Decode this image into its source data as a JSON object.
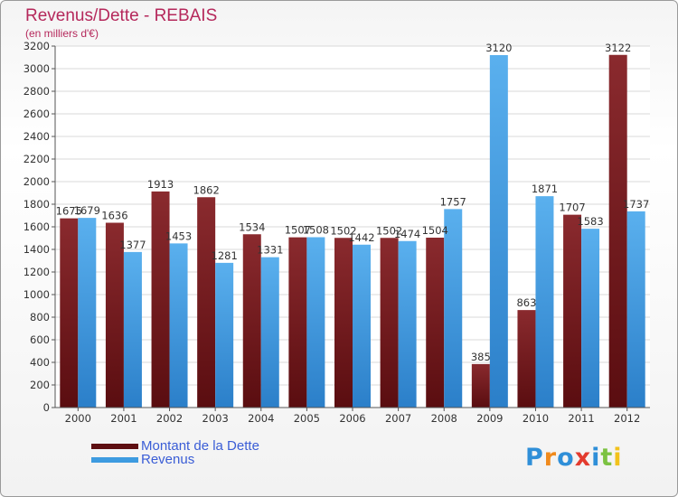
{
  "chart_data": {
    "type": "bar",
    "title": "Revenus/Dette - REBAIS",
    "subtitle": "(en milliers d'€)",
    "categories": [
      "2000",
      "2001",
      "2002",
      "2003",
      "2004",
      "2005",
      "2006",
      "2007",
      "2008",
      "2009",
      "2010",
      "2011",
      "2012"
    ],
    "series": [
      {
        "name": "Montant de la Dette",
        "color": "#7a1e22",
        "values": [
          1675,
          1636,
          1913,
          1862,
          1534,
          1507,
          1502,
          1502,
          1504,
          385,
          863,
          1707,
          3122
        ]
      },
      {
        "name": "Revenus",
        "color": "#3d9be0",
        "values": [
          1679,
          1377,
          1453,
          1281,
          1331,
          1508,
          1442,
          1474,
          1757,
          3120,
          1871,
          1583,
          1737
        ]
      }
    ],
    "ylim": [
      0,
      3200
    ],
    "yticks": [
      0,
      200,
      400,
      600,
      800,
      1000,
      1200,
      1400,
      1600,
      1800,
      2000,
      2200,
      2400,
      2600,
      2800,
      3000,
      3200
    ],
    "grid": true,
    "legend_position": "bottom-left"
  },
  "logo": {
    "text": "Proxiti"
  },
  "colors": {
    "title": "#b5285b",
    "legend_text": "#3a5dd6"
  }
}
